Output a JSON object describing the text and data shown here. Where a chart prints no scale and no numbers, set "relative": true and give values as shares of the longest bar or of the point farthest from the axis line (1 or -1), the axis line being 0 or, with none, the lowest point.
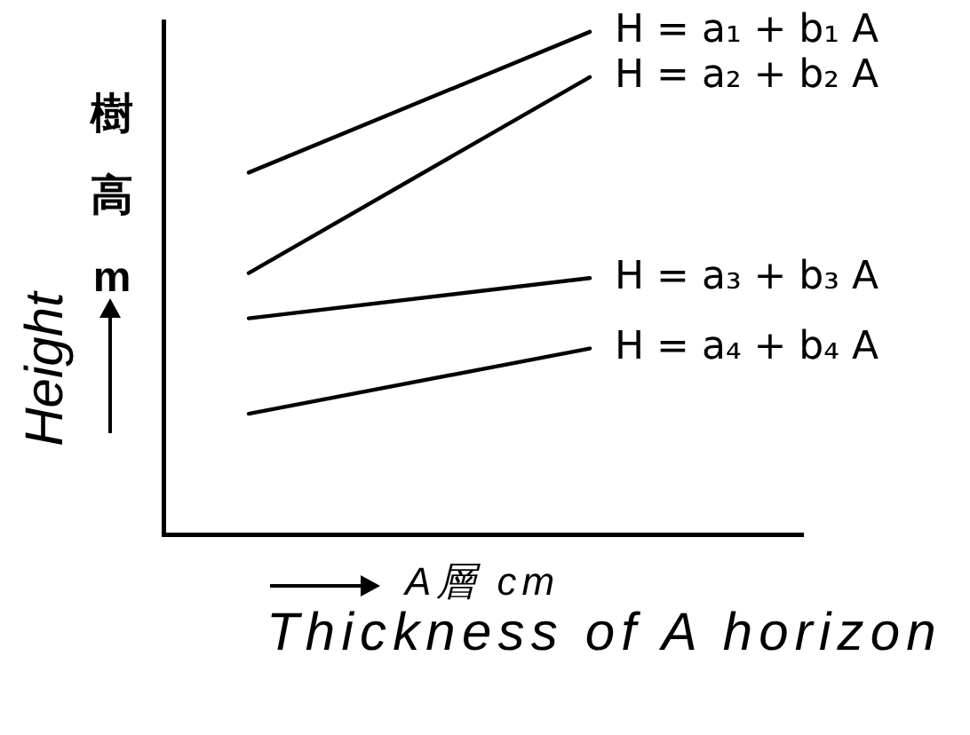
{
  "chart_data": {
    "type": "line",
    "relative": true,
    "xlabel": "Thickness of A horizon",
    "ylabel": "Height",
    "annotations": [
      "樹高 m",
      "A層 cm"
    ],
    "categories": [
      null,
      null,
      null,
      null,
      null,
      null,
      null,
      null,
      null,
      null,
      null,
      null,
      null,
      null,
      null,
      null
    ],
    "series": [
      {
        "name": "H = a₁ + b₁ A",
        "color": "#000000",
        "values": [
          null,
          null,
          0.72,
          null,
          null,
          null,
          null,
          null,
          null,
          null,
          1,
          null,
          null,
          null,
          null,
          null
        ]
      },
      {
        "name": "H = a₂ + b₂ A",
        "color": "#000000",
        "values": [
          null,
          null,
          0.52,
          null,
          null,
          null,
          null,
          null,
          null,
          null,
          0.91,
          null,
          null,
          null,
          null,
          null
        ]
      },
      {
        "name": "H = a₃ + b₃ A",
        "color": "#000000",
        "values": [
          null,
          null,
          0.43,
          null,
          null,
          null,
          null,
          null,
          null,
          null,
          0.51,
          null,
          null,
          null,
          null,
          null
        ]
      },
      {
        "name": "H = a₄ + b₄ A",
        "color": "#000000",
        "values": [
          null,
          null,
          0.24,
          null,
          null,
          null,
          null,
          null,
          null,
          null,
          0.37,
          null,
          null,
          null,
          null,
          null
        ]
      }
    ],
    "marker": "none",
    "line_style": "solid"
  }
}
